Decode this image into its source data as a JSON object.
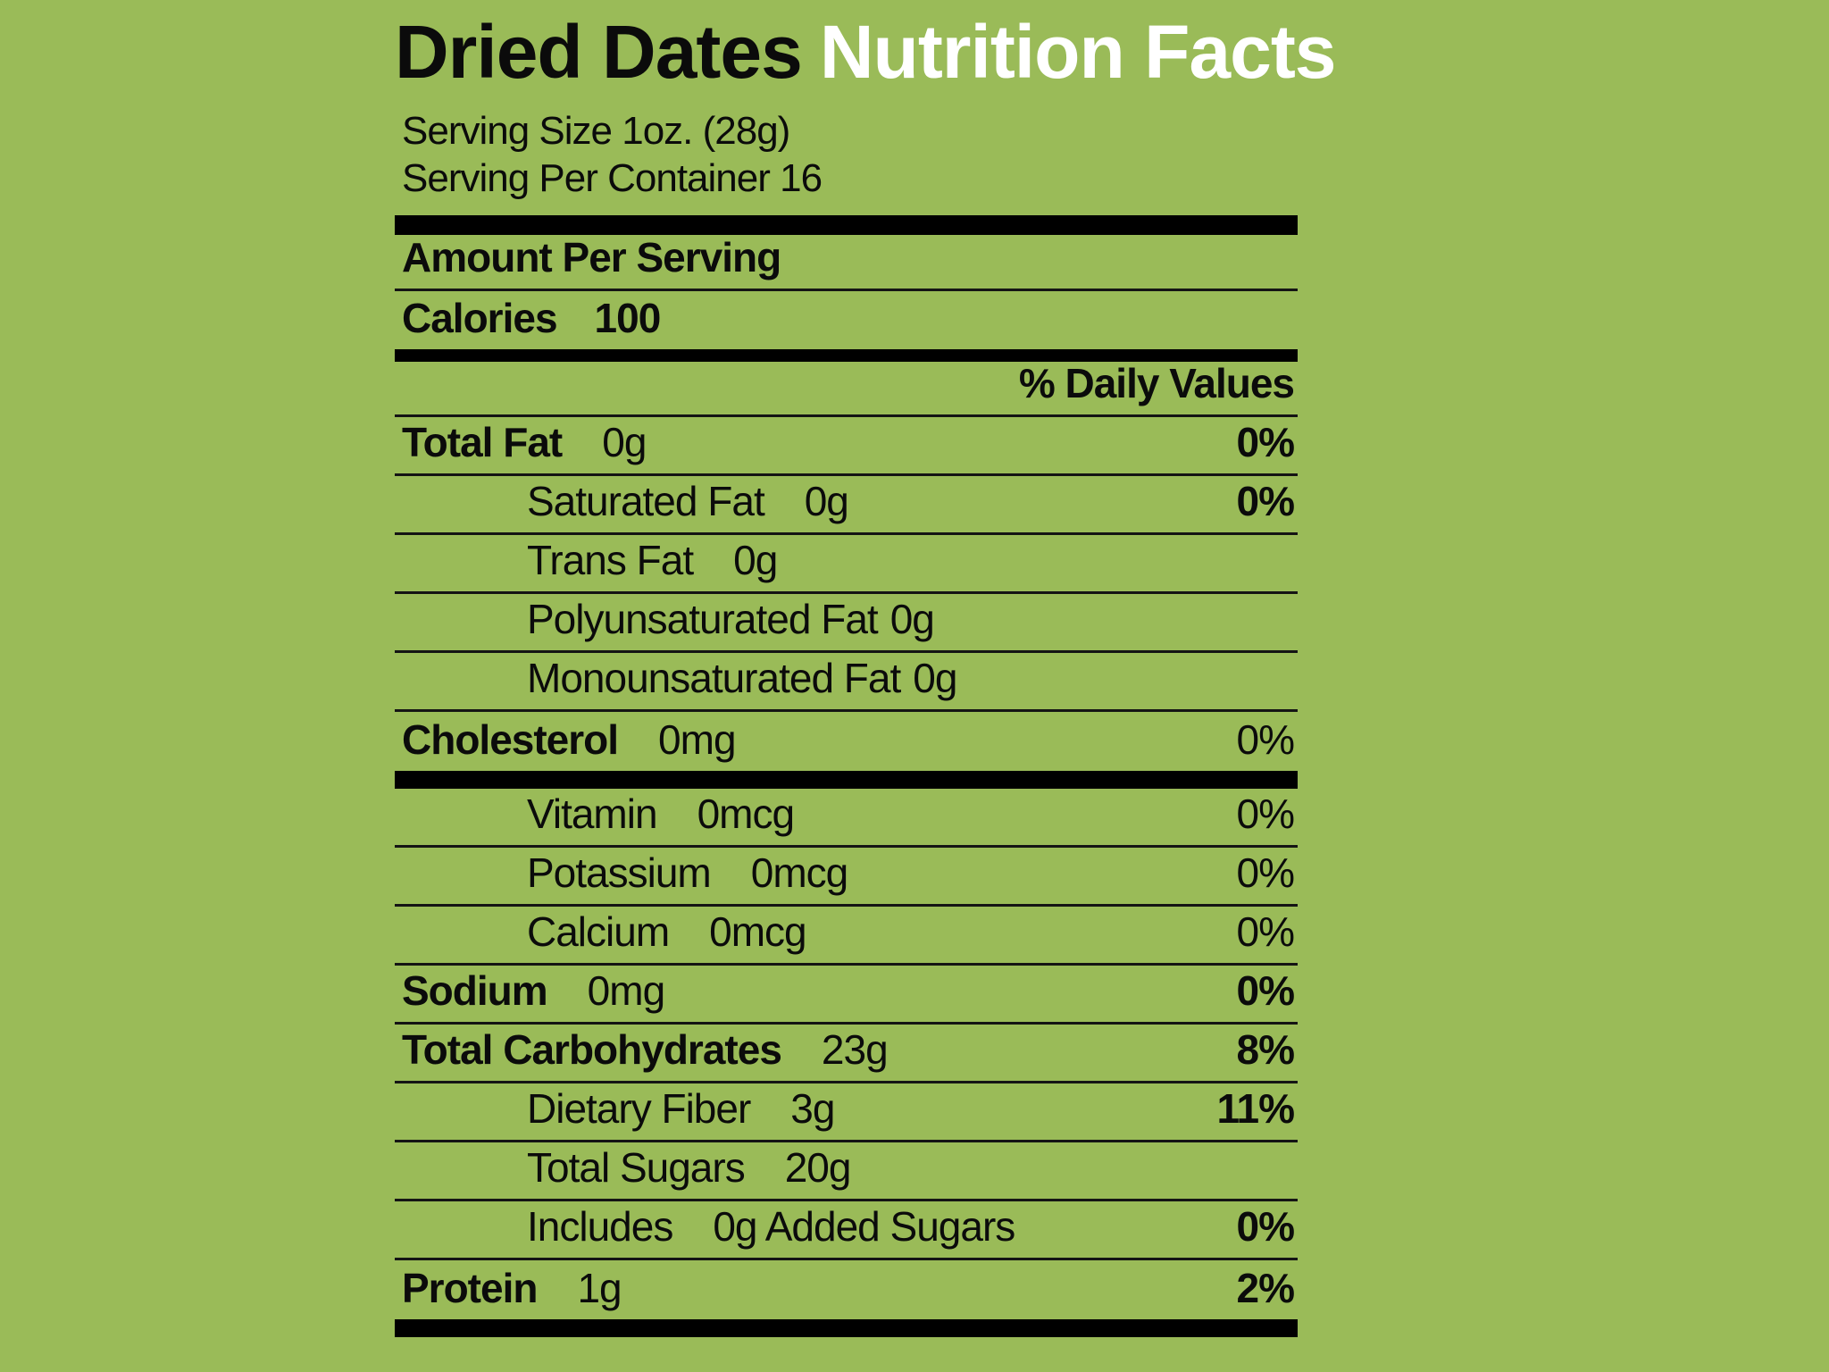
{
  "colors": {
    "background": "#9ABB58",
    "text": "#0B0B0B",
    "rule": "#141414",
    "title_accent": "#FFFFFF",
    "divider": "#000000"
  },
  "title": {
    "product": "Dried Dates",
    "suffix": "Nutrition Facts"
  },
  "serving": {
    "size": "Serving Size 1oz. (28g)",
    "per_container": "Serving Per Container 16"
  },
  "header": {
    "amount_per_serving": "Amount Per Serving",
    "calories_label": "Calories",
    "calories_value": "100",
    "daily_values": "% Daily Values"
  },
  "nutrients": [
    {
      "name": "Total Fat",
      "bold": true,
      "amount": "0g",
      "percent": "0%",
      "percent_bold": true,
      "indent": 0
    },
    {
      "name": "Saturated Fat",
      "amount": "0g",
      "percent": "0%",
      "percent_bold": true,
      "indent": 1
    },
    {
      "name": "Trans Fat",
      "amount": "0g",
      "indent": 1
    },
    {
      "name": "Polyunsaturated Fat",
      "amount": "0g",
      "narrow_gap": true,
      "indent": 1
    },
    {
      "name": "Monounsaturated Fat",
      "amount": "0g",
      "narrow_gap": true,
      "indent": 1
    },
    {
      "name": "Cholesterol",
      "bold": true,
      "amount": "0mg",
      "percent": "0%",
      "percent_bold": false,
      "indent": 0,
      "no_rule": true,
      "thick_bar_after": true
    },
    {
      "name": "Vitamin",
      "amount": "0mcg",
      "percent": "0%",
      "percent_bold": false,
      "indent": 1
    },
    {
      "name": "Potassium",
      "amount": "0mcg",
      "percent": "0%",
      "percent_bold": false,
      "indent": 1
    },
    {
      "name": "Calcium",
      "amount": "0mcg",
      "percent": "0%",
      "percent_bold": false,
      "indent": 1
    },
    {
      "name": "Sodium",
      "bold": true,
      "amount": "0mg",
      "percent": "0%",
      "percent_bold": true,
      "indent": 0
    },
    {
      "name": "Total Carbohydrates",
      "bold": true,
      "amount": "23g",
      "percent": "8%",
      "percent_bold": true,
      "indent": 0
    },
    {
      "name": "Dietary Fiber",
      "amount": "3g",
      "percent": "11%",
      "percent_bold": true,
      "indent": 1
    },
    {
      "name": "Total Sugars",
      "amount": "20g",
      "indent": 1
    },
    {
      "name": "Includes",
      "amount": "0g Added Sugars",
      "percent": "0%",
      "percent_bold": true,
      "indent": 1
    },
    {
      "name": "Protein",
      "bold": true,
      "amount": "1g",
      "percent": "2%",
      "percent_bold": true,
      "indent": 0,
      "no_rule": true,
      "thick_bar_after": true
    }
  ]
}
